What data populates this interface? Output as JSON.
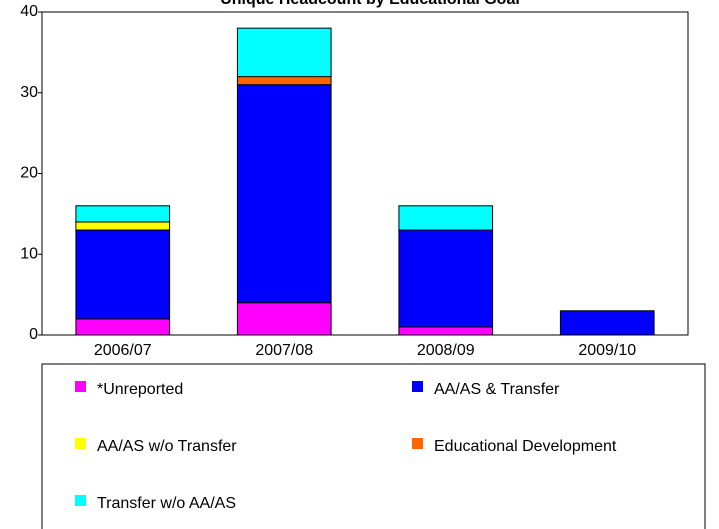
{
  "chart_data": {
    "type": "stacked_bar",
    "title": "Unique Headcount by Educational Goal",
    "categories": [
      "2006/07",
      "2007/08",
      "2008/09",
      "2009/10"
    ],
    "series": [
      {
        "name": "*Unreported",
        "color": "#ff00ff",
        "values": [
          2,
          4,
          1,
          0
        ]
      },
      {
        "name": "AA/AS & Transfer",
        "color": "#0000ff",
        "values": [
          11,
          27,
          12,
          3
        ]
      },
      {
        "name": "AA/AS w/o Transfer",
        "color": "#ffff00",
        "values": [
          1,
          0,
          0,
          0
        ]
      },
      {
        "name": "Educational Development",
        "color": "#ff6600",
        "values": [
          0,
          1,
          0,
          0
        ]
      },
      {
        "name": "Transfer w/o AA/AS",
        "color": "#00ffff",
        "values": [
          2,
          6,
          3,
          0
        ]
      }
    ],
    "ylim": [
      0,
      40
    ],
    "yticks": [
      0,
      10,
      20,
      30,
      40
    ],
    "legend": "bottom"
  }
}
